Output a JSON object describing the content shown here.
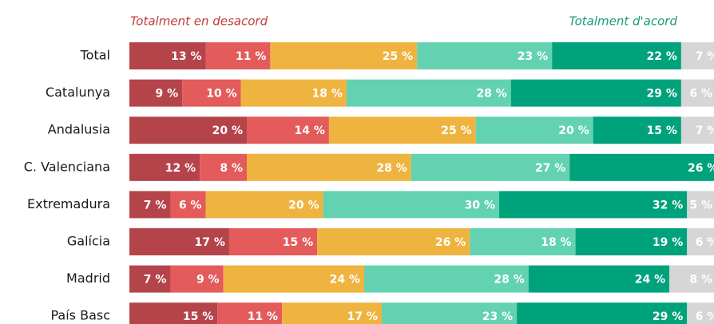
{
  "chart_data": {
    "type": "stacked-bar-horizontal",
    "annotations": [
      "Totalment en desacord",
      "Totalment d'acord"
    ],
    "categories": [
      "Total",
      "Catalunya",
      "Andalusia",
      "C. Valenciana",
      "Extremadura",
      "Galícia",
      "Madrid",
      "País Basc"
    ],
    "series": [
      {
        "color": "#b5444a",
        "values": [
          13,
          9,
          20,
          12,
          7,
          17,
          7,
          15
        ],
        "value_labels": [
          "13 %",
          "9 %",
          "20 %",
          "12 %",
          "7 %",
          "17 %",
          "7 %",
          "15 %"
        ]
      },
      {
        "color": "#e35b5b",
        "values": [
          11,
          10,
          14,
          8,
          6,
          15,
          9,
          11
        ],
        "value_labels": [
          "11 %",
          "10 %",
          "14 %",
          "8 %",
          "6 %",
          "15 %",
          "9 %",
          "11 %"
        ]
      },
      {
        "color": "#efb440",
        "values": [
          25,
          18,
          25,
          28,
          20,
          26,
          24,
          17
        ],
        "value_labels": [
          "25 %",
          "18 %",
          "25 %",
          "28 %",
          "20 %",
          "26 %",
          "24 %",
          "17 %"
        ]
      },
      {
        "color": "#63d2b1",
        "values": [
          23,
          28,
          20,
          27,
          30,
          18,
          28,
          23
        ],
        "value_labels": [
          "23 %",
          "28 %",
          "20 %",
          "27 %",
          "30 %",
          "18 %",
          "28 %",
          "23 %"
        ]
      },
      {
        "color": "#00a27b",
        "values": [
          22,
          29,
          15,
          26,
          32,
          19,
          24,
          29
        ],
        "value_labels": [
          "22 %",
          "29 %",
          "15 %",
          "26 %",
          "32 %",
          "19 %",
          "24 %",
          "29 %"
        ]
      },
      {
        "color": "#d6d6d6",
        "values": [
          7,
          6,
          7,
          null,
          5,
          6,
          8,
          6
        ],
        "value_labels": [
          "7 %",
          "6 %",
          "7 %",
          null,
          "5 %",
          "6 %",
          "8 %",
          "6 %"
        ]
      }
    ]
  }
}
